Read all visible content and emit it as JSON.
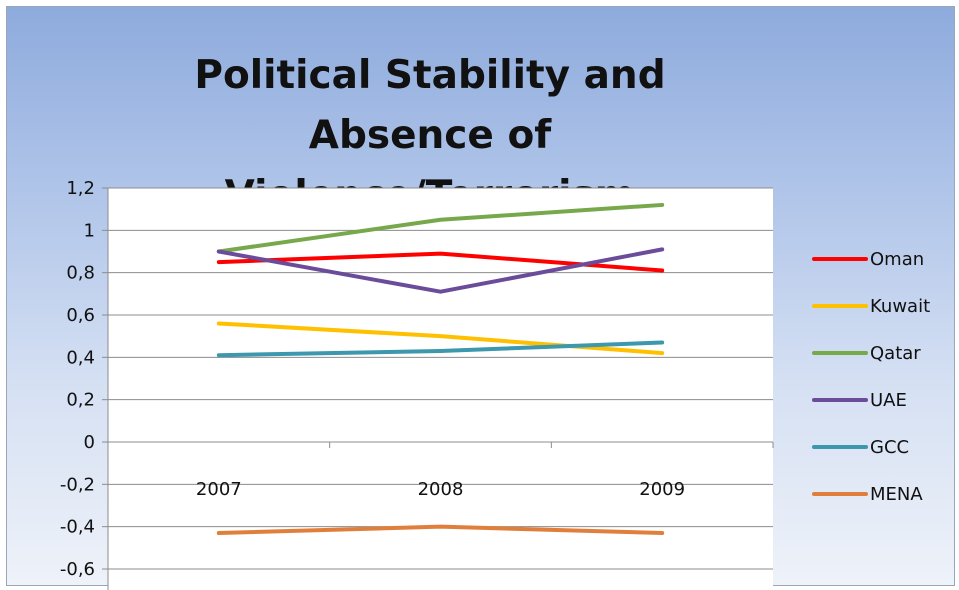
{
  "chart_data": {
    "type": "line",
    "title": "Political Stability and Absence of Violence/Terrorism",
    "categories": [
      "2007",
      "2008",
      "2009"
    ],
    "ylim": [
      -0.6,
      1.2
    ],
    "yticks": [
      "1,2",
      "1",
      "0,8",
      "0,6",
      "0,4",
      "0,2",
      "0",
      "-0,2",
      "-0,4",
      "-0,6"
    ],
    "ytick_values": [
      1.2,
      1.0,
      0.8,
      0.6,
      0.4,
      0.2,
      0.0,
      -0.2,
      -0.4,
      -0.6
    ],
    "grid": true,
    "legend_position": "right",
    "series": [
      {
        "name": "Oman",
        "color": "#ff0000",
        "values": [
          0.85,
          0.89,
          0.81
        ]
      },
      {
        "name": "Kuwait",
        "color": "#ffc000",
        "values": [
          0.56,
          0.5,
          0.42
        ]
      },
      {
        "name": "Qatar",
        "color": "#77a84b",
        "values": [
          0.9,
          1.05,
          1.12
        ]
      },
      {
        "name": "UAE",
        "color": "#6b4c9a",
        "values": [
          0.9,
          0.71,
          0.91
        ]
      },
      {
        "name": "GCC",
        "color": "#3d97ad",
        "values": [
          0.41,
          0.43,
          0.47
        ]
      },
      {
        "name": "MENA",
        "color": "#e07f3c",
        "values": [
          -0.43,
          -0.4,
          -0.43
        ]
      }
    ]
  }
}
